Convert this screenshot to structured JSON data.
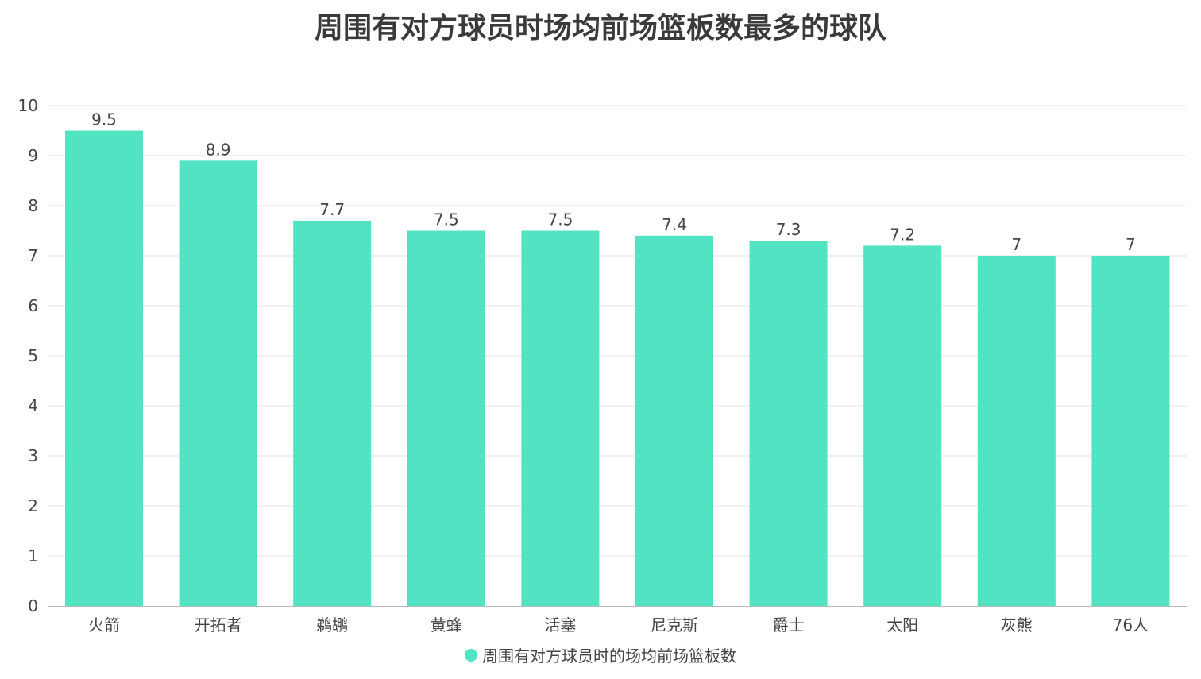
{
  "chart_data": {
    "type": "bar",
    "title": "周围有对方球员时场均前场篮板数最多的球队",
    "categories": [
      "火箭",
      "开拓者",
      "鹈鹕",
      "黄蜂",
      "活塞",
      "尼克斯",
      "爵士",
      "太阳",
      "灰熊",
      "76人"
    ],
    "series": [
      {
        "name": "周围有对方球员时的场均前场篮板数",
        "values": [
          9.5,
          8.9,
          7.7,
          7.5,
          7.5,
          7.4,
          7.3,
          7.2,
          7,
          7
        ],
        "labels": [
          "9.5",
          "8.9",
          "7.7",
          "7.5",
          "7.5",
          "7.4",
          "7.3",
          "7.2",
          "7",
          "7"
        ]
      }
    ],
    "yticks": [
      "0",
      "1",
      "2",
      "3",
      "4",
      "5",
      "6",
      "7",
      "8",
      "9",
      "10"
    ],
    "ylim": [
      0,
      10
    ],
    "grid": true,
    "legend_position": "bottom",
    "bar_color": "#52e3c2",
    "grid_color": "#e3e3e3",
    "axis_color": "#b8b8b8"
  }
}
